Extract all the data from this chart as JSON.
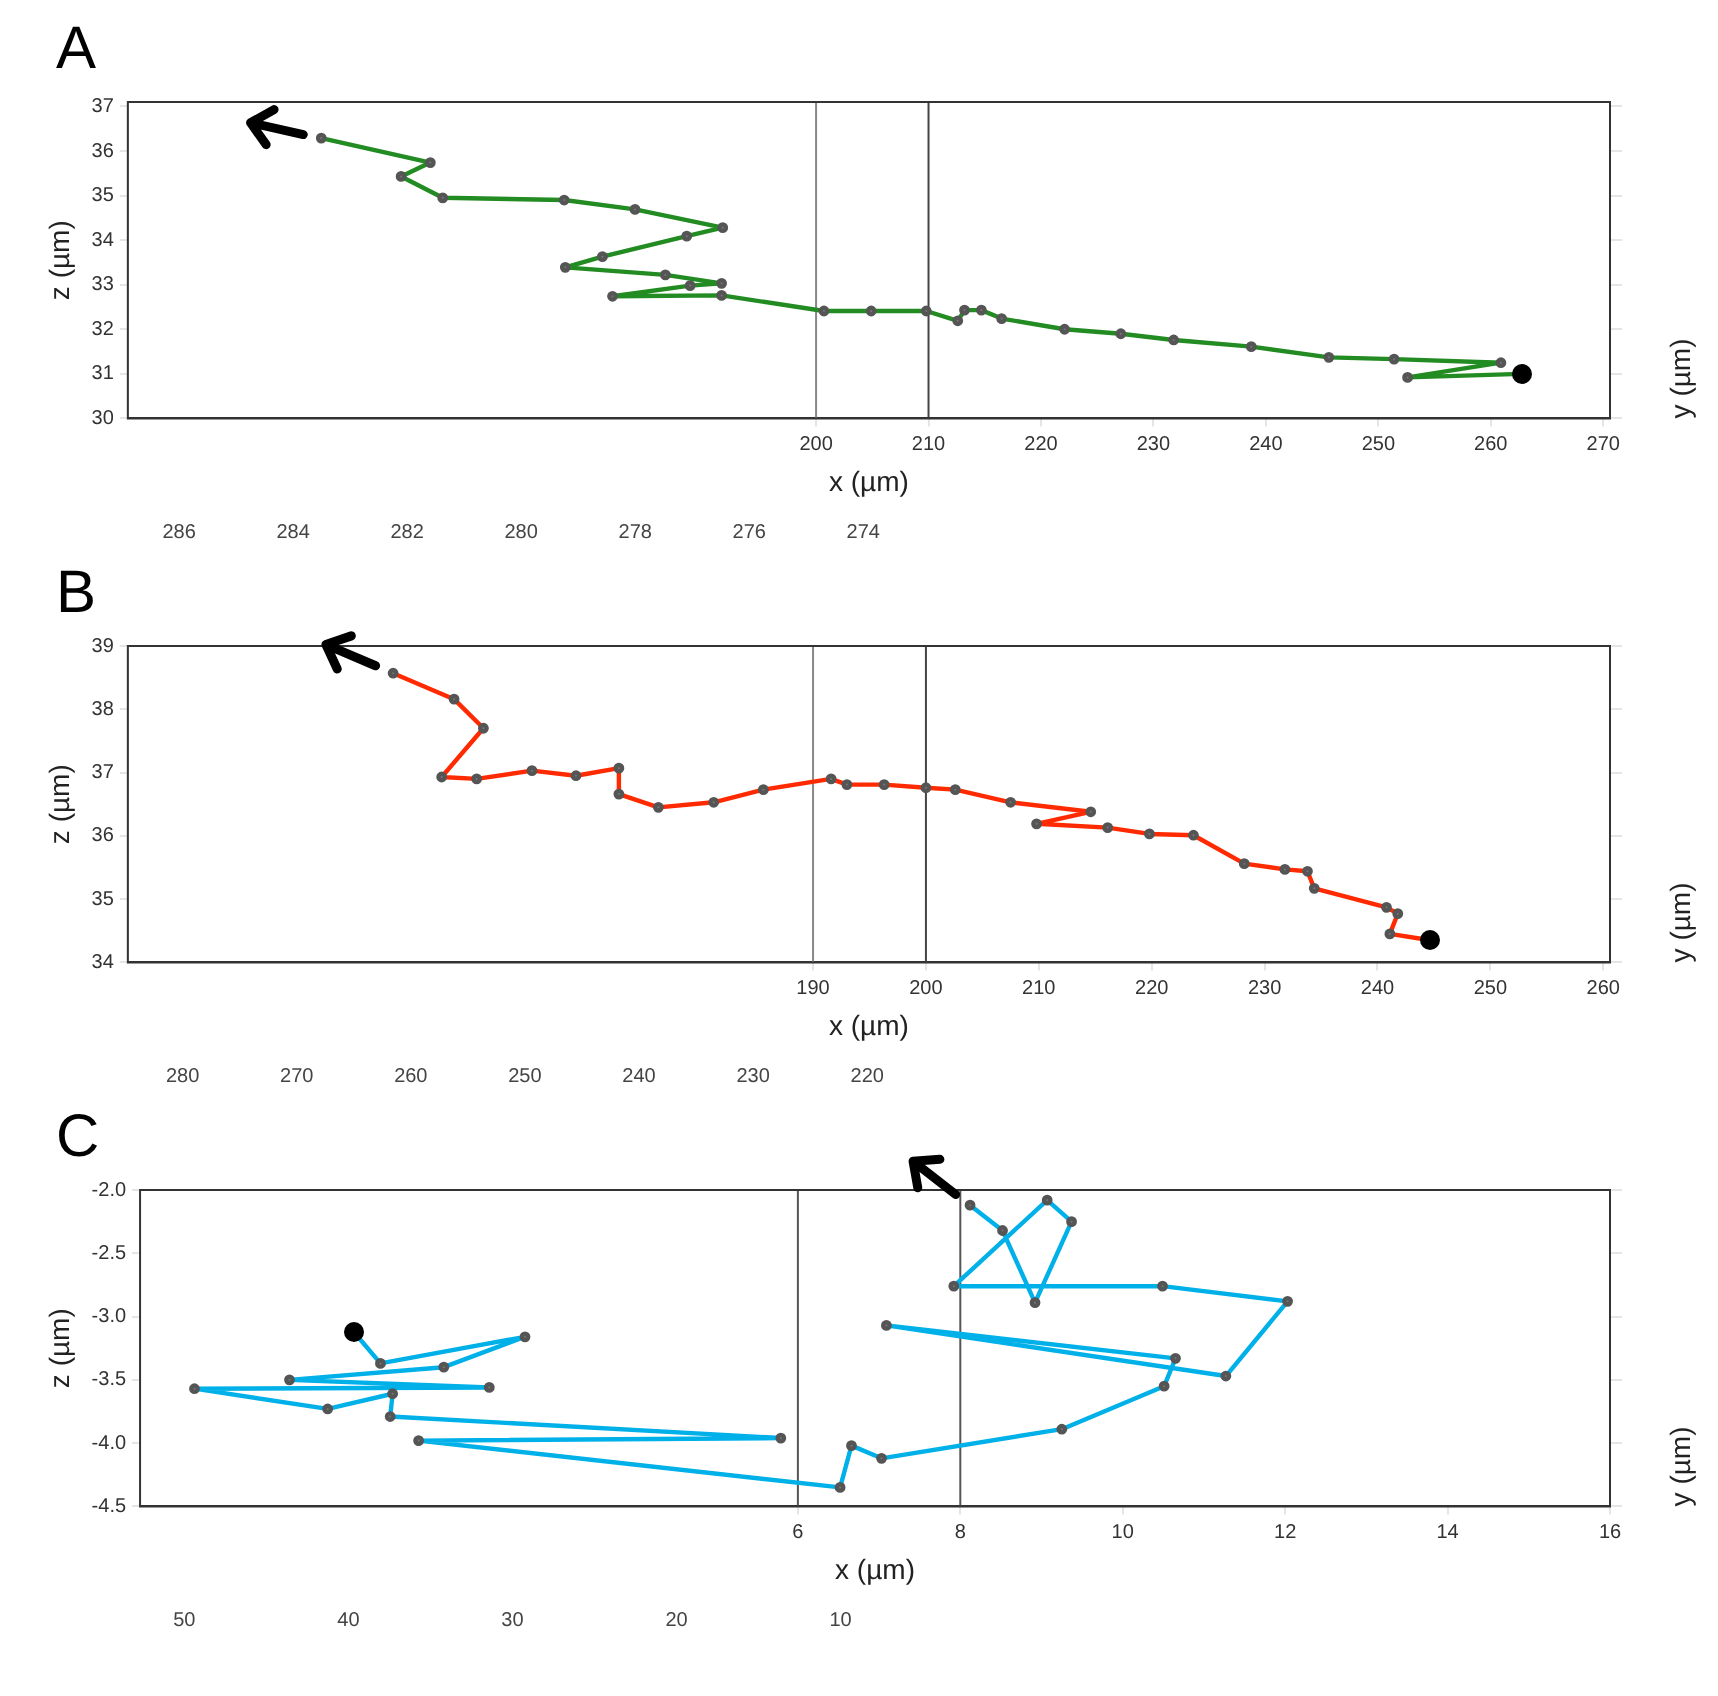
{
  "chart_data": [
    {
      "type": "line",
      "title": "A",
      "xlabel": "x (µm)",
      "ylabel": "z (µm)",
      "x2label": "y (µm)",
      "xlim": [
        138.8,
        270.6
      ],
      "xticks": [
        200,
        210,
        220,
        230,
        240,
        250,
        260,
        270
      ],
      "x2lim": [
        286.9,
        260.9
      ],
      "x2ticks": [
        286,
        284,
        282,
        280,
        278,
        276,
        274
      ],
      "ylim": [
        30,
        37.1
      ],
      "yticks": [
        30,
        31,
        32,
        33,
        34,
        35,
        36,
        37
      ],
      "grid": false,
      "marker": "circle",
      "line_style": "solid",
      "ref_lines": [
        {
          "axis": "x",
          "value": 200,
          "color": "#888888"
        },
        {
          "axis": "x",
          "value": 210,
          "color": "#444444"
        }
      ],
      "series": [
        {
          "color": "#228b22",
          "x": [
            262.7,
            252.6,
            260.9,
            251.4,
            245.6,
            238.7,
            231.8,
            227.1,
            222.1,
            216.5,
            214.7,
            213.2,
            212.6,
            209.8,
            204.9,
            200.7,
            191.6,
            181.9,
            188.8,
            191.6,
            186.6,
            177.7,
            181.0,
            188.5,
            191.7,
            183.9,
            177.6,
            166.8,
            163.1,
            165.7,
            156.0
          ],
          "values": [
            31.0,
            30.92,
            31.25,
            31.33,
            31.37,
            31.61,
            31.76,
            31.9,
            32.0,
            32.24,
            32.43,
            32.43,
            32.19,
            32.41,
            32.41,
            32.41,
            32.76,
            32.74,
            32.98,
            33.03,
            33.22,
            33.39,
            33.63,
            34.09,
            34.28,
            34.69,
            34.9,
            34.95,
            35.43,
            35.74,
            36.29
          ]
        }
      ]
    },
    {
      "type": "line",
      "title": "B",
      "xlabel": "x (µm)",
      "ylabel": "z (µm)",
      "x2label": "y (µm)",
      "xlim": [
        129.3,
        260.6
      ],
      "xticks": [
        190,
        200,
        210,
        220,
        230,
        240,
        250,
        260
      ],
      "x2lim": [
        284.8,
        154.9
      ],
      "x2ticks": [
        280,
        270,
        260,
        250,
        240,
        230,
        220
      ],
      "ylim": [
        34,
        39
      ],
      "yticks": [
        34,
        35,
        36,
        37,
        38,
        39
      ],
      "grid": false,
      "marker": "circle",
      "line_style": "solid",
      "ref_lines": [
        {
          "axis": "x",
          "value": 190,
          "color": "#888888"
        },
        {
          "axis": "x",
          "value": 200,
          "color": "#444444"
        }
      ],
      "series": [
        {
          "color": "#ff2a00",
          "x": [
            244.7,
            241.1,
            241.8,
            240.8,
            234.4,
            233.8,
            231.8,
            228.2,
            223.7,
            219.8,
            216.1,
            209.8,
            214.6,
            207.5,
            202.6,
            200.0,
            196.3,
            193.0,
            191.6,
            185.6,
            181.2,
            176.3,
            172.8,
            172.8,
            169.0,
            165.1,
            160.2,
            157.1,
            160.8,
            158.2,
            152.8
          ],
          "values": [
            34.35,
            34.45,
            34.77,
            34.87,
            35.17,
            35.44,
            35.47,
            35.56,
            36.01,
            36.03,
            36.13,
            36.19,
            36.38,
            36.53,
            36.73,
            36.76,
            36.81,
            36.81,
            36.9,
            36.73,
            36.53,
            36.45,
            36.66,
            37.07,
            36.95,
            37.03,
            36.9,
            36.93,
            37.7,
            38.16,
            38.57
          ]
        }
      ]
    },
    {
      "type": "line",
      "title": "C",
      "xlabel": "x (µm)",
      "ylabel": "z (µm)",
      "x2label": "y (µm)",
      "xlim": [
        -2.1,
        16
      ],
      "xticks": [
        6,
        8,
        10,
        12,
        14,
        16
      ],
      "x2lim": [
        52.7,
        -36.9
      ],
      "x2ticks": [
        50,
        40,
        30,
        20,
        10
      ],
      "ylim": [
        -4.5,
        -2.0
      ],
      "yticks": [
        {
          "value": -4.5,
          "label": "-4.5"
        },
        {
          "value": -4,
          "label": "-4.0"
        },
        {
          "value": -3.5,
          "label": "-3.5"
        },
        {
          "value": -3,
          "label": "-3.0"
        },
        {
          "value": -2.5,
          "label": "-2.5"
        },
        {
          "value": -2,
          "label": "-2.0"
        }
      ],
      "grid": false,
      "marker": "circle",
      "line_style": "solid",
      "ref_lines": [
        {
          "axis": "x",
          "value": 6,
          "color": "#555555"
        },
        {
          "axis": "x",
          "value": 8,
          "color": "#555555"
        }
      ],
      "series": [
        {
          "color": "#00b0e8",
          "x": [
            0.53,
            0.86,
            2.64,
            1.64,
            -0.26,
            2.2,
            -1.43,
            0.21,
            1.01,
            0.98,
            5.79,
            1.33,
            6.52,
            6.66,
            7.03,
            9.25,
            10.51,
            10.65,
            7.09,
            11.27,
            12.03,
            10.49,
            7.92,
            9.07,
            9.37,
            8.92,
            8.52,
            8.12
          ],
          "values": [
            -3.12,
            -3.37,
            -3.16,
            -3.4,
            -3.5,
            -3.56,
            -3.57,
            -3.73,
            -3.61,
            -3.79,
            -3.96,
            -3.98,
            -4.35,
            -4.02,
            -4.12,
            -3.89,
            -3.55,
            -3.33,
            -3.07,
            -3.47,
            -2.88,
            -2.76,
            -2.76,
            -2.08,
            -2.25,
            -2.89,
            -2.32,
            -2.12
          ]
        }
      ]
    }
  ]
}
